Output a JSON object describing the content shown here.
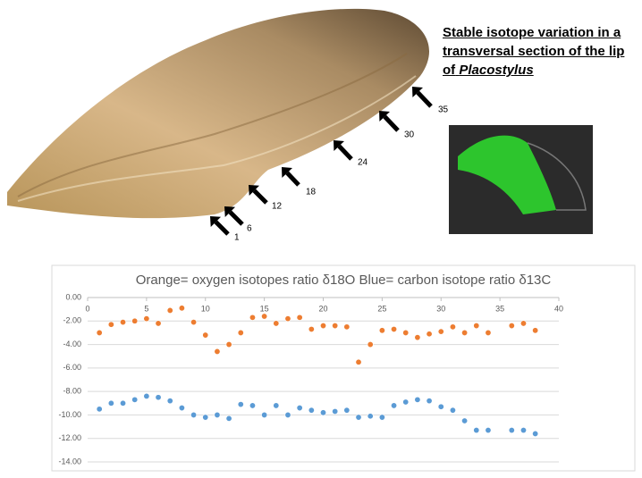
{
  "slide": {
    "heading": "Stable isotope variation in a transversal section of the lip of",
    "heading_italic": "Placostylus",
    "arrow_labels": [
      "1",
      "6",
      "12",
      "18",
      "24",
      "30",
      "35"
    ]
  },
  "chart_data": {
    "type": "scatter",
    "title": "Orange= oxygen isotopes ratio δ18O Blue= carbon isotope ratio δ13C",
    "x": [
      1,
      2,
      3,
      4,
      5,
      6,
      7,
      8,
      9,
      10,
      11,
      12,
      13,
      14,
      15,
      16,
      17,
      18,
      19,
      20,
      21,
      22,
      23,
      24,
      25,
      26,
      27,
      28,
      29,
      30,
      31,
      32,
      33,
      34,
      36,
      37,
      38
    ],
    "series": [
      {
        "color": "#ed7d31",
        "values": [
          -3.0,
          -2.3,
          -2.1,
          -2.0,
          -1.8,
          -2.2,
          -1.1,
          -0.9,
          -2.1,
          -3.2,
          -4.6,
          -4.0,
          -3.0,
          -1.7,
          -1.6,
          -2.2,
          -1.8,
          -1.7,
          -2.7,
          -2.4,
          -2.4,
          -2.5,
          -5.5,
          -4.0,
          -2.8,
          -2.7,
          -3.0,
          -3.4,
          -3.1,
          -2.9,
          -2.5,
          -3.0,
          -2.4,
          -3.0,
          -2.4,
          -2.2,
          -2.8
        ]
      },
      {
        "color": "#5b9bd5",
        "values": [
          -9.5,
          -9.0,
          -9.0,
          -8.7,
          -8.4,
          -8.5,
          -8.8,
          -9.4,
          -10.0,
          -10.2,
          -10.0,
          -10.3,
          -9.1,
          -9.2,
          -10.0,
          -9.2,
          -10.0,
          -9.4,
          -9.6,
          -9.8,
          -9.7,
          -9.6,
          -10.2,
          -10.1,
          -10.2,
          -9.2,
          -8.9,
          -8.7,
          -8.8,
          -9.3,
          -9.6,
          -10.5,
          -11.3,
          -11.3,
          -11.3,
          -11.3,
          -11.6
        ]
      }
    ],
    "xlim": [
      0,
      40
    ],
    "xticks": [
      0,
      5,
      10,
      15,
      20,
      25,
      30,
      35,
      40
    ],
    "ylim": [
      -14,
      0
    ],
    "yticks": [
      {
        "value": 0,
        "label": "0.00"
      },
      {
        "value": -2,
        "label": "-2.00"
      },
      {
        "value": -4,
        "label": "-4.00"
      },
      {
        "value": -6,
        "label": "-6.00"
      },
      {
        "value": -8,
        "label": "-8.00"
      },
      {
        "value": -10,
        "label": "-10.00"
      },
      {
        "value": -12,
        "label": "-12.00"
      },
      {
        "value": -14,
        "label": "-14.00"
      }
    ],
    "grid": true
  }
}
